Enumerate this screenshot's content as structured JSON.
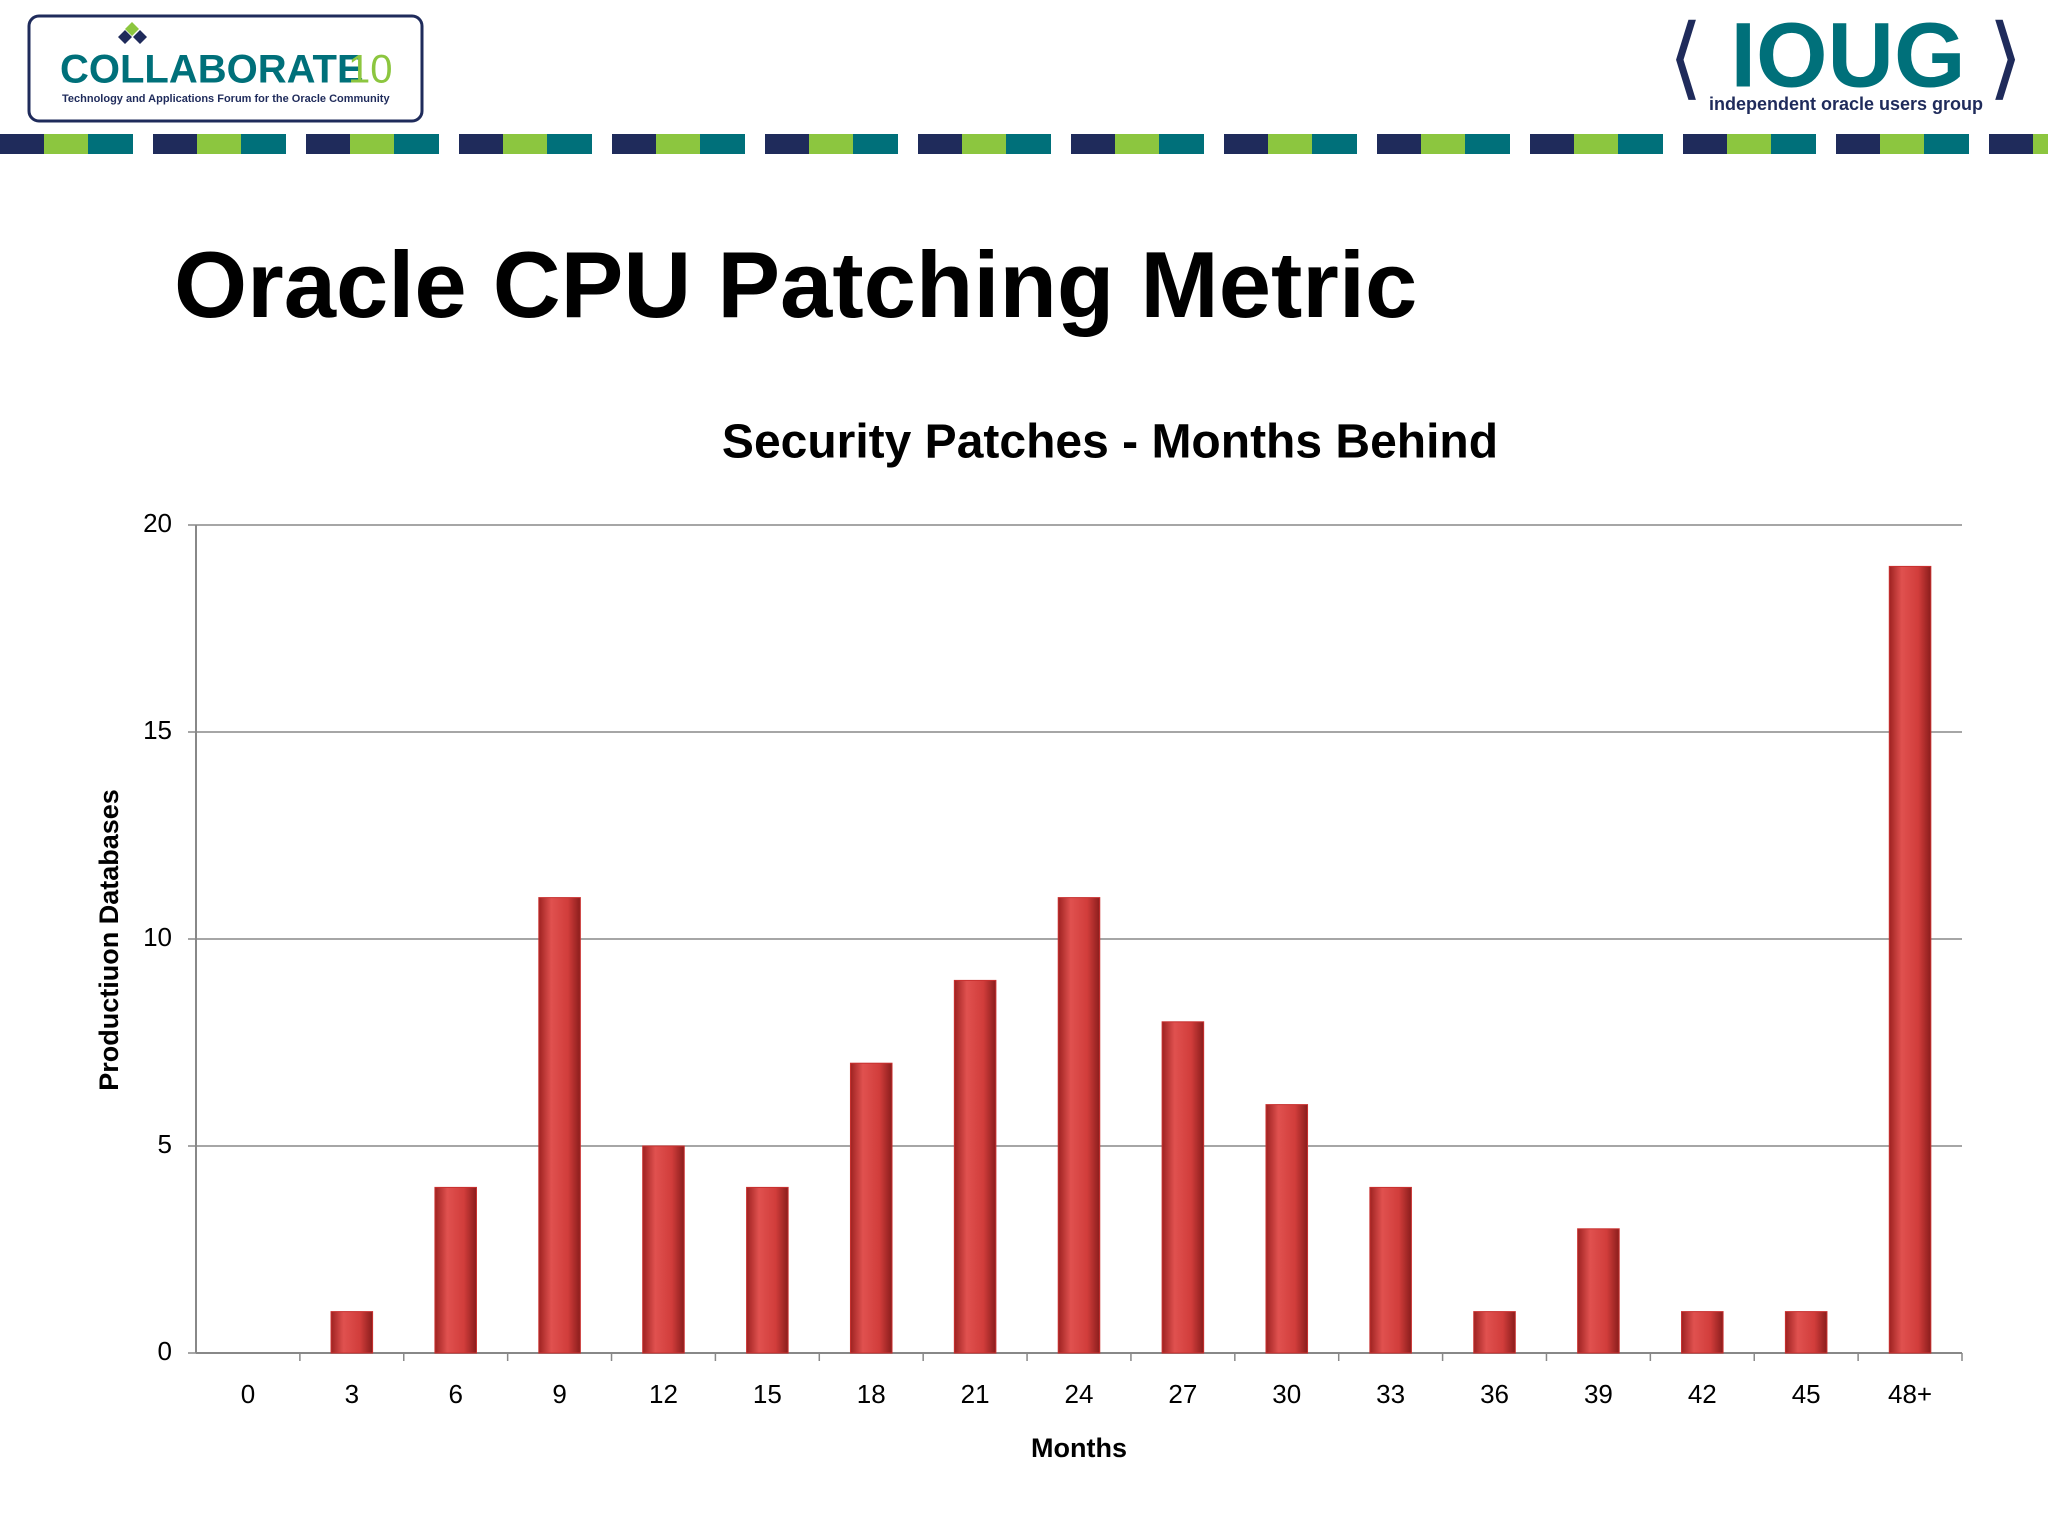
{
  "header": {
    "left_logo": {
      "name": "COLLABORATE",
      "edition": "10",
      "tagline": "Technology and Applications Forum for the Oracle Community"
    },
    "right_logo": {
      "name": "IOUG",
      "tagline": "independent oracle users group"
    }
  },
  "slide_title": "Oracle CPU Patching Metric",
  "chart_data": {
    "type": "bar",
    "title": "Security Patches - Months Behind",
    "x_label": "Months",
    "y_label": "Productiuon Databases",
    "categories": [
      "0",
      "3",
      "6",
      "9",
      "12",
      "15",
      "18",
      "21",
      "24",
      "27",
      "30",
      "33",
      "36",
      "39",
      "42",
      "45",
      "48+"
    ],
    "values": [
      0,
      1,
      4,
      11,
      5,
      4,
      7,
      9,
      11,
      8,
      6,
      4,
      1,
      3,
      1,
      1,
      19
    ],
    "color": "#c8302f",
    "ylim": [
      0,
      20
    ],
    "yticks": [
      0,
      5,
      10,
      15,
      20
    ],
    "grid": true
  }
}
